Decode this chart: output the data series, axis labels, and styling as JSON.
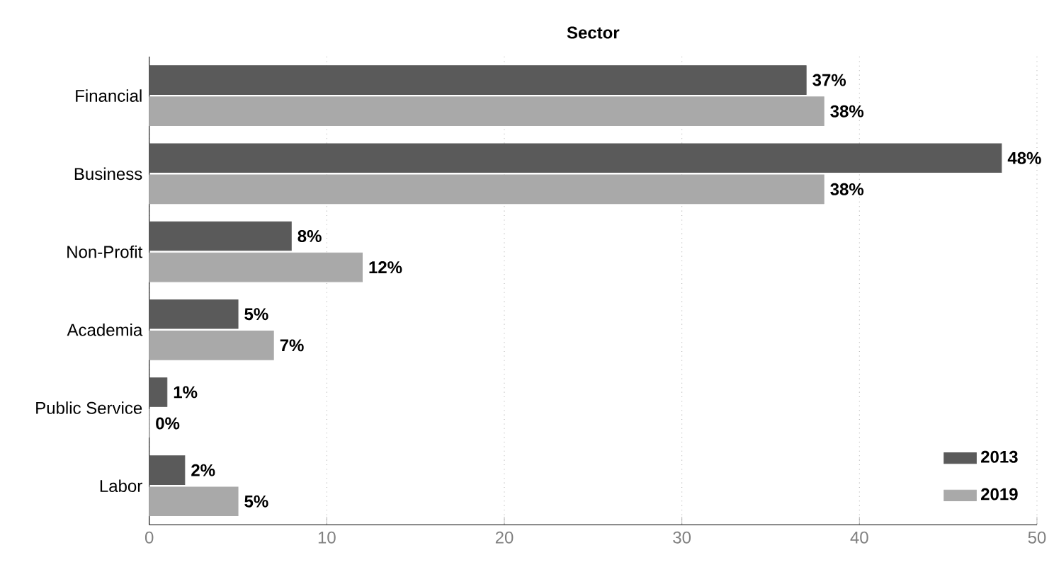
{
  "chart_data": {
    "type": "bar",
    "orientation": "horizontal",
    "title": "Sector",
    "categories": [
      "Financial",
      "Business",
      "Non-Profit",
      "Academia",
      "Public Service",
      "Labor"
    ],
    "series": [
      {
        "name": "2013",
        "color": "#5a5a5a",
        "values": [
          37,
          48,
          8,
          5,
          1,
          2
        ],
        "value_labels": [
          "37%",
          "48%",
          "8%",
          "5%",
          "1%",
          "2%"
        ]
      },
      {
        "name": "2019",
        "color": "#a9a9a9",
        "values": [
          38,
          38,
          12,
          7,
          0,
          5
        ],
        "value_labels": [
          "38%",
          "38%",
          "12%",
          "7%",
          "0%",
          "5%"
        ]
      }
    ],
    "xlim": [
      0,
      50
    ],
    "xticks": [
      0,
      10,
      20,
      30,
      40,
      50
    ],
    "grid": "x",
    "legend": "bottom right"
  }
}
